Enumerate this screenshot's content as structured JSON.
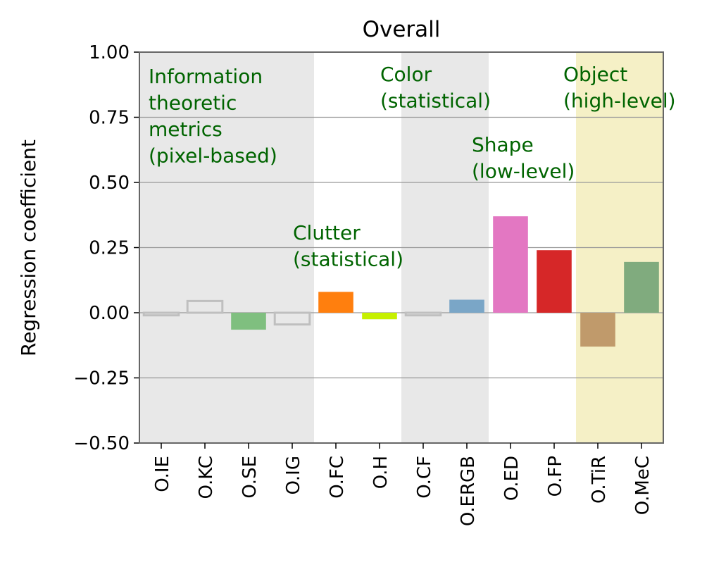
{
  "chart_data": {
    "type": "bar",
    "title": "Overall",
    "xlabel": "",
    "ylabel": "Regression coefficient",
    "ylim": [
      -0.5,
      1.0
    ],
    "yticks": [
      "1.00",
      "0.75",
      "0.50",
      "0.25",
      "0.00",
      "−0.25",
      "−0.50"
    ],
    "ytick_values": [
      1.0,
      0.75,
      0.5,
      0.25,
      0.0,
      -0.25,
      -0.5
    ],
    "grid": "horizontal",
    "categories": [
      "O.IE",
      "O.KC",
      "O.SE",
      "O.IG",
      "O.FC",
      "O.H",
      "O.CF",
      "O.ERGB",
      "O.ED",
      "O.FP",
      "O.TiR",
      "O.MeC"
    ],
    "values": [
      -0.01,
      0.045,
      -0.065,
      -0.045,
      0.08,
      -0.025,
      -0.01,
      0.05,
      0.37,
      0.24,
      -0.13,
      0.195
    ],
    "bar_styles": [
      {
        "fill": "none",
        "stroke": "#bfbfbf"
      },
      {
        "fill": "none",
        "stroke": "#bfbfbf"
      },
      {
        "fill": "#7fbf7f",
        "stroke": "none"
      },
      {
        "fill": "none",
        "stroke": "#bfbfbf"
      },
      {
        "fill": "#ff7f0e",
        "stroke": "none"
      },
      {
        "fill": "#c6f000",
        "stroke": "none"
      },
      {
        "fill": "none",
        "stroke": "#bfbfbf"
      },
      {
        "fill": "#7aa6c7",
        "stroke": "none"
      },
      {
        "fill": "#e377c2",
        "stroke": "none"
      },
      {
        "fill": "#d62728",
        "stroke": "none"
      },
      {
        "fill": "#c09a6b",
        "stroke": "none"
      },
      {
        "fill": "#80ab7e",
        "stroke": "none"
      }
    ],
    "groups": [
      {
        "label": [
          "Information",
          "theoretic",
          "metrics",
          "(pixel-based)"
        ],
        "start": 0,
        "end": 3,
        "background": "#e8e8e8"
      },
      {
        "label": [
          "Clutter",
          "(statistical)"
        ],
        "start": 4,
        "end": 5,
        "background": "#ffffff"
      },
      {
        "label": [
          "Color",
          "(statistical)"
        ],
        "start": 6,
        "end": 7,
        "background": "#e8e8e8"
      },
      {
        "label": [
          "Shape",
          "(low-level)"
        ],
        "start": 8,
        "end": 9,
        "background": "#ffffff"
      },
      {
        "label": [
          "Object",
          "(high-level)"
        ],
        "start": 10,
        "end": 11,
        "background": "#f5f0c6"
      }
    ],
    "colors": {
      "group_label": "#006400",
      "grid": "#999999",
      "axis": "#666666"
    }
  }
}
